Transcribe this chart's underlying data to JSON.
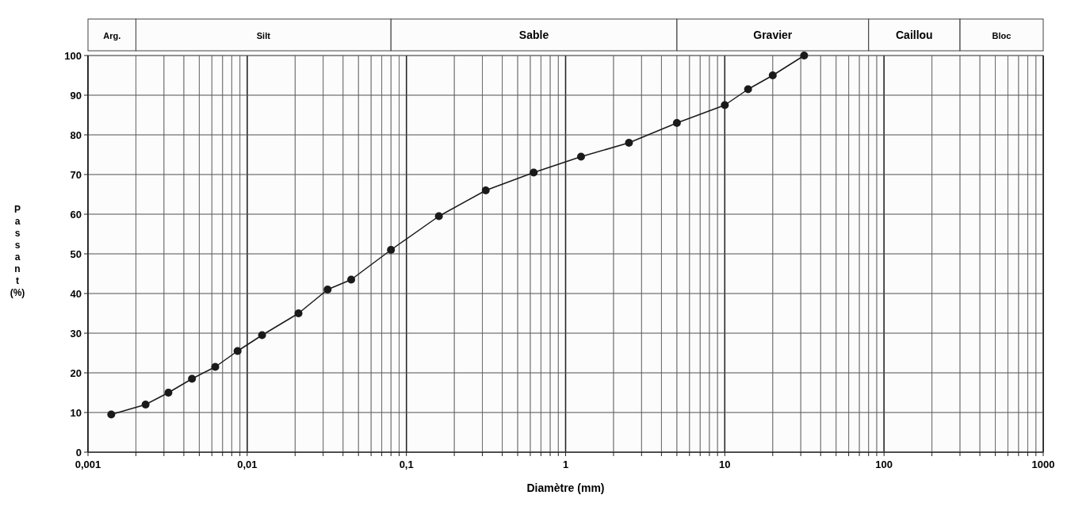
{
  "chart_data": {
    "type": "line",
    "xlabel": "Diamètre (mm)",
    "ylabel": "Passant (%)",
    "log": "x",
    "grid": true,
    "marker": "circle",
    "line_style": "solid",
    "x": [
      0.0014,
      0.0023,
      0.0032,
      0.0045,
      0.0063,
      0.0087,
      0.0124,
      0.021,
      0.032,
      0.045,
      0.08,
      0.16,
      0.315,
      0.63,
      1.25,
      2.5,
      5,
      10,
      14,
      20,
      31.5
    ],
    "series": [
      {
        "color": "#1a1a1a",
        "values": [
          9.5,
          12,
          15,
          18.5,
          21.5,
          25.5,
          29.5,
          35,
          41,
          43.5,
          51,
          59.5,
          66,
          70.5,
          74.5,
          78,
          83,
          87.5,
          91.5,
          95,
          100
        ]
      }
    ],
    "xlim": [
      0.001,
      1000
    ],
    "ylim": [
      0,
      100
    ],
    "xticks": [
      {
        "value": 0.001,
        "label": "0,001"
      },
      {
        "value": 0.002,
        "label": null
      },
      {
        "value": 0.003,
        "label": null
      },
      {
        "value": 0.004,
        "label": null
      },
      {
        "value": 0.005,
        "label": null
      },
      {
        "value": 0.006,
        "label": null
      },
      {
        "value": 0.007,
        "label": null
      },
      {
        "value": 0.008,
        "label": null
      },
      {
        "value": 0.009,
        "label": null
      },
      {
        "value": 0.01,
        "label": "0,01"
      },
      {
        "value": 0.02,
        "label": null
      },
      {
        "value": 0.03,
        "label": null
      },
      {
        "value": 0.04,
        "label": null
      },
      {
        "value": 0.05,
        "label": null
      },
      {
        "value": 0.06,
        "label": null
      },
      {
        "value": 0.07,
        "label": null
      },
      {
        "value": 0.08,
        "label": null
      },
      {
        "value": 0.09,
        "label": null
      },
      {
        "value": 0.1,
        "label": "0,1"
      },
      {
        "value": 0.2,
        "label": null
      },
      {
        "value": 0.3,
        "label": null
      },
      {
        "value": 0.4,
        "label": null
      },
      {
        "value": 0.5,
        "label": null
      },
      {
        "value": 0.6,
        "label": null
      },
      {
        "value": 0.7,
        "label": null
      },
      {
        "value": 0.8,
        "label": null
      },
      {
        "value": 0.9,
        "label": null
      },
      {
        "value": 1,
        "label": "1"
      },
      {
        "value": 2,
        "label": null
      },
      {
        "value": 3,
        "label": null
      },
      {
        "value": 4,
        "label": null
      },
      {
        "value": 5,
        "label": null
      },
      {
        "value": 6,
        "label": null
      },
      {
        "value": 7,
        "label": null
      },
      {
        "value": 8,
        "label": null
      },
      {
        "value": 9,
        "label": null
      },
      {
        "value": 10,
        "label": "10"
      },
      {
        "value": 20,
        "label": null
      },
      {
        "value": 30,
        "label": null
      },
      {
        "value": 40,
        "label": null
      },
      {
        "value": 50,
        "label": null
      },
      {
        "value": 60,
        "label": null
      },
      {
        "value": 70,
        "label": null
      },
      {
        "value": 80,
        "label": null
      },
      {
        "value": 90,
        "label": null
      },
      {
        "value": 100,
        "label": "100"
      },
      {
        "value": 200,
        "label": null
      },
      {
        "value": 300,
        "label": null
      },
      {
        "value": 400,
        "label": null
      },
      {
        "value": 500,
        "label": null
      },
      {
        "value": 600,
        "label": null
      },
      {
        "value": 700,
        "label": null
      },
      {
        "value": 800,
        "label": null
      },
      {
        "value": 900,
        "label": null
      },
      {
        "value": 1000,
        "label": "1000"
      }
    ],
    "yticks": [
      0,
      10,
      20,
      30,
      40,
      50,
      60,
      70,
      80,
      90,
      100
    ],
    "bands": [
      {
        "axis": "x",
        "from": 0.001,
        "to": 0.002,
        "label": "Arg."
      },
      {
        "axis": "x",
        "from": 0.002,
        "to": 0.08,
        "label": "Silt"
      },
      {
        "axis": "x",
        "from": 0.08,
        "to": 5,
        "label": "Sable"
      },
      {
        "axis": "x",
        "from": 5,
        "to": 80,
        "label": "Gravier"
      },
      {
        "axis": "x",
        "from": 80,
        "to": 300,
        "label": "Caillou"
      },
      {
        "axis": "x",
        "from": 300,
        "to": 1000,
        "label": "Bloc"
      }
    ]
  }
}
